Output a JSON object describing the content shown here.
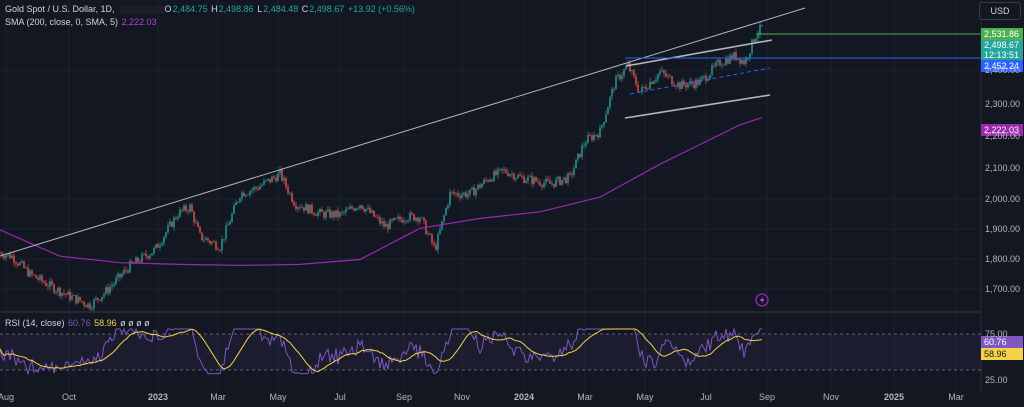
{
  "legend": {
    "symbol": "Gold Spot / U.S. Dollar, 1D,",
    "o_label": "O",
    "o_value": "2,484.75",
    "h_label": "H",
    "h_value": "2,498.86",
    "l_label": "L",
    "l_value": "2,484.48",
    "c_label": "C",
    "c_value": "2,498.67",
    "change": "+13.92 (+0.56%)",
    "sma_label": "SMA (200, close, 0, SMA, 5)",
    "sma_value": "2,222.03",
    "rsi_label": "RSI (14, close)",
    "rsi_value1": "60.76",
    "rsi_value2": "58.96",
    "rsi_extra": "ø ø ø ø"
  },
  "currency_button": "USD",
  "price_tags": {
    "high_line": "2,531.86",
    "last_price": "2,498.67",
    "countdown": "12:13:51",
    "support": "2,452.24",
    "sma": "2,222.03",
    "rsi_main": "60.76",
    "rsi_ma": "58.96"
  },
  "colors": {
    "up": "#26a69a",
    "down": "#ef5350",
    "sma": "#b045d8",
    "rsi": "#7e57c2",
    "rsi_ma": "#f5d24a",
    "support": "#2962ff",
    "high": "#4caf50"
  },
  "y_axis": [
    "2,400.00",
    "2,300.00",
    "2,200.00",
    "2,100.00",
    "2,000.00",
    "1,900.00",
    "1,800.00",
    "1,700.00"
  ],
  "rsi_axis": [
    "75.00",
    "25.00"
  ],
  "x_axis": [
    "Aug",
    "Oct",
    "2023",
    "Mar",
    "May",
    "Jul",
    "Sep",
    "Nov",
    "2024",
    "Mar",
    "May",
    "Jul",
    "Sep",
    "Nov",
    "2025",
    "Mar"
  ],
  "chart_data": {
    "type": "candlestick",
    "ylim": [
      1630,
      2580
    ],
    "smaCurve": [
      [
        0,
        1880
      ],
      [
        60,
        1800
      ],
      [
        120,
        1780
      ],
      [
        180,
        1775
      ],
      [
        240,
        1772
      ],
      [
        300,
        1775
      ],
      [
        360,
        1790
      ],
      [
        420,
        1885
      ],
      [
        480,
        1915
      ],
      [
        540,
        1935
      ],
      [
        600,
        1980
      ],
      [
        660,
        2080
      ],
      [
        700,
        2140
      ],
      [
        740,
        2200
      ],
      [
        762,
        2222
      ]
    ]
  }
}
